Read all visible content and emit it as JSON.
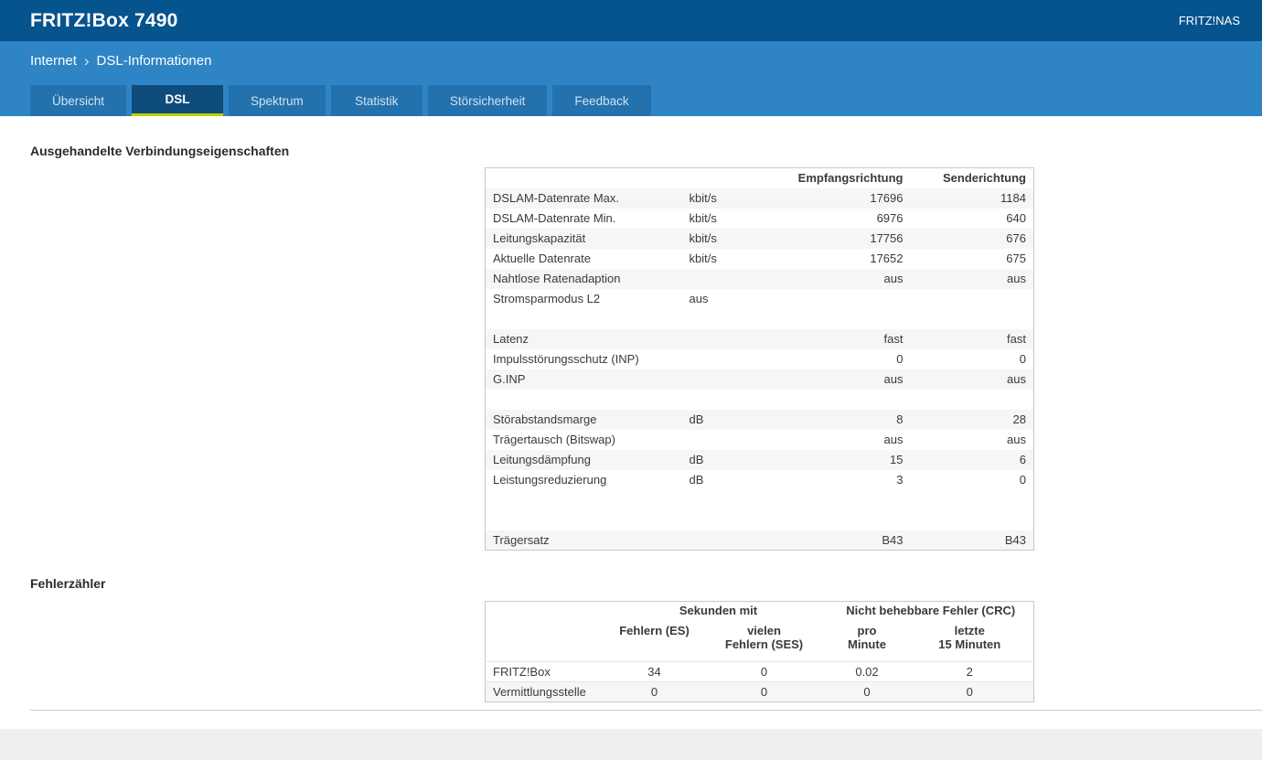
{
  "header": {
    "title": "FRITZ!Box 7490",
    "nas_link": "FRITZ!NAS"
  },
  "breadcrumb": {
    "section": "Internet",
    "separator": "›",
    "page": "DSL-Informationen"
  },
  "tabs": [
    {
      "label": "Übersicht",
      "active": false
    },
    {
      "label": "DSL",
      "active": true
    },
    {
      "label": "Spektrum",
      "active": false
    },
    {
      "label": "Statistik",
      "active": false
    },
    {
      "label": "Störsicherheit",
      "active": false
    },
    {
      "label": "Feedback",
      "active": false
    }
  ],
  "connection_section": {
    "title": "Ausgehandelte Verbindungseigenschaften",
    "columns": {
      "receive": "Empfangsrichtung",
      "send": "Senderichtung"
    },
    "rows": [
      {
        "label": "DSLAM-Datenrate Max.",
        "unit": "kbit/s",
        "receive": "17696",
        "send": "1184"
      },
      {
        "label": "DSLAM-Datenrate Min.",
        "unit": "kbit/s",
        "receive": "6976",
        "send": "640"
      },
      {
        "label": "Leitungskapazität",
        "unit": "kbit/s",
        "receive": "17756",
        "send": "676"
      },
      {
        "label": "Aktuelle Datenrate",
        "unit": "kbit/s",
        "receive": "17652",
        "send": "675"
      },
      {
        "label": "Nahtlose Ratenadaption",
        "unit": "",
        "receive": "aus",
        "send": "aus"
      },
      {
        "label": "Stromsparmodus L2",
        "unit": "aus",
        "receive": "",
        "send": ""
      },
      {
        "label": "",
        "unit": "",
        "receive": "",
        "send": ""
      },
      {
        "label": "Latenz",
        "unit": "",
        "receive": "fast",
        "send": "fast"
      },
      {
        "label": "Impulsstörungsschutz (INP)",
        "unit": "",
        "receive": "0",
        "send": "0"
      },
      {
        "label": "G.INP",
        "unit": "",
        "receive": "aus",
        "send": "aus"
      },
      {
        "label": "",
        "unit": "",
        "receive": "",
        "send": ""
      },
      {
        "label": "Störabstandsmarge",
        "unit": "dB",
        "receive": "8",
        "send": "28"
      },
      {
        "label": "Trägertausch (Bitswap)",
        "unit": "",
        "receive": "aus",
        "send": "aus"
      },
      {
        "label": "Leitungsdämpfung",
        "unit": "dB",
        "receive": "15",
        "send": "6"
      },
      {
        "label": "Leistungsreduzierung",
        "unit": "dB",
        "receive": "3",
        "send": "0"
      },
      {
        "label": "",
        "unit": "",
        "receive": "",
        "send": ""
      },
      {
        "label": "",
        "unit": "",
        "receive": "",
        "send": ""
      },
      {
        "label": "Trägersatz",
        "unit": "",
        "receive": "B43",
        "send": "B43"
      }
    ]
  },
  "error_section": {
    "title": "Fehlerzähler",
    "group_headers": [
      "Sekunden mit",
      "Nicht behebbare Fehler (CRC)"
    ],
    "column_headers": [
      "Fehlern (ES)",
      "vielen\nFehlern (SES)",
      "pro\nMinute",
      "letzte\n15 Minuten"
    ],
    "rows": [
      {
        "label": "FRITZ!Box",
        "values": [
          "34",
          "0",
          "0.02",
          "2"
        ]
      },
      {
        "label": "Vermittlungsstelle",
        "values": [
          "0",
          "0",
          "0",
          "0"
        ]
      }
    ]
  },
  "colors": {
    "header_bg": "#06548e",
    "subbar_bg": "#2f84c5",
    "tab_bg": "#2372ad",
    "tab_active_bg": "#0e4c7c",
    "tab_active_underline": "#bed000",
    "row_alt_bg": "#f6f6f6",
    "table_border": "#c8c8c8"
  }
}
